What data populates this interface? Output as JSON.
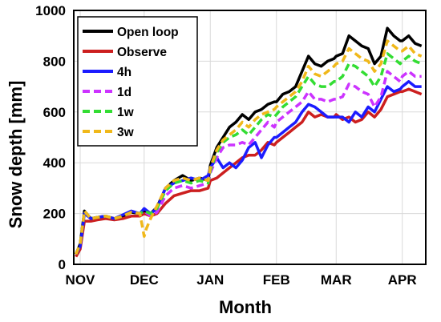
{
  "chart_data": {
    "type": "line",
    "title": "",
    "xlabel": "Month",
    "ylabel": "Snow depth [mm]",
    "ylim": [
      0,
      1000
    ],
    "yticks": [
      0,
      200,
      400,
      600,
      800,
      1000
    ],
    "x_range_days": [
      -3,
      162
    ],
    "xticks": [
      {
        "label": "NOV",
        "day": 0
      },
      {
        "label": "DEC",
        "day": 30
      },
      {
        "label": "JAN",
        "day": 61
      },
      {
        "label": "FEB",
        "day": 92
      },
      {
        "label": "MAR",
        "day": 120
      },
      {
        "label": "APR",
        "day": 151
      }
    ],
    "grid": true,
    "legend_position": "top-left",
    "series": [
      {
        "name": "Open loop",
        "color": "#000000",
        "dash": "solid",
        "x": [
          -2,
          0,
          2,
          5,
          8,
          12,
          16,
          20,
          24,
          28,
          30,
          33,
          36,
          40,
          44,
          48,
          52,
          56,
          60,
          61,
          64,
          67,
          70,
          73,
          76,
          79,
          82,
          85,
          88,
          91,
          92,
          95,
          98,
          101,
          104,
          107,
          110,
          113,
          116,
          119,
          120,
          123,
          126,
          129,
          132,
          135,
          138,
          141,
          144,
          147,
          150,
          151,
          154,
          157,
          160
        ],
        "y": [
          40,
          80,
          210,
          180,
          185,
          190,
          180,
          190,
          205,
          200,
          210,
          200,
          225,
          300,
          330,
          350,
          330,
          340,
          330,
          390,
          460,
          500,
          540,
          560,
          590,
          570,
          600,
          610,
          630,
          640,
          640,
          670,
          680,
          700,
          760,
          820,
          790,
          780,
          800,
          810,
          820,
          830,
          900,
          880,
          860,
          850,
          790,
          820,
          930,
          900,
          880,
          880,
          900,
          870,
          860
        ]
      },
      {
        "name": "Observe",
        "color": "#cc1f1f",
        "dash": "solid",
        "x": [
          -2,
          0,
          2,
          5,
          8,
          12,
          16,
          20,
          24,
          28,
          30,
          33,
          36,
          40,
          44,
          48,
          52,
          56,
          60,
          61,
          64,
          67,
          70,
          73,
          76,
          79,
          82,
          85,
          88,
          91,
          92,
          95,
          98,
          101,
          104,
          107,
          110,
          113,
          116,
          119,
          120,
          123,
          126,
          129,
          132,
          135,
          138,
          141,
          144,
          147,
          150,
          151,
          154,
          157,
          160
        ],
        "y": [
          30,
          60,
          170,
          170,
          175,
          180,
          175,
          180,
          190,
          190,
          200,
          190,
          200,
          240,
          270,
          280,
          290,
          290,
          300,
          330,
          340,
          360,
          380,
          400,
          420,
          430,
          430,
          450,
          480,
          470,
          480,
          500,
          520,
          540,
          560,
          600,
          580,
          590,
          580,
          580,
          590,
          570,
          580,
          560,
          570,
          600,
          580,
          610,
          660,
          670,
          680,
          680,
          690,
          680,
          670
        ]
      },
      {
        "name": "4h",
        "color": "#1b1bff",
        "dash": "solid",
        "x": [
          -2,
          0,
          2,
          5,
          8,
          12,
          16,
          20,
          24,
          28,
          30,
          33,
          36,
          40,
          44,
          48,
          52,
          56,
          60,
          61,
          64,
          67,
          70,
          73,
          76,
          79,
          82,
          85,
          88,
          91,
          92,
          95,
          98,
          101,
          104,
          107,
          110,
          113,
          116,
          119,
          120,
          123,
          126,
          129,
          132,
          135,
          138,
          141,
          144,
          147,
          150,
          151,
          154,
          157,
          160
        ],
        "y": [
          40,
          70,
          200,
          180,
          185,
          190,
          180,
          195,
          210,
          200,
          220,
          200,
          220,
          300,
          320,
          330,
          340,
          330,
          350,
          380,
          420,
          380,
          400,
          380,
          410,
          460,
          480,
          420,
          470,
          500,
          500,
          520,
          540,
          560,
          600,
          630,
          620,
          600,
          580,
          580,
          580,
          580,
          560,
          600,
          580,
          620,
          600,
          650,
          700,
          680,
          690,
          700,
          720,
          700,
          700
        ]
      },
      {
        "name": "1d",
        "color": "#cc33ff",
        "dash": "dash",
        "x": [
          -2,
          0,
          2,
          5,
          8,
          12,
          16,
          20,
          24,
          28,
          30,
          33,
          36,
          40,
          44,
          48,
          52,
          56,
          60,
          61,
          64,
          67,
          70,
          73,
          76,
          79,
          82,
          85,
          88,
          91,
          92,
          95,
          98,
          101,
          104,
          107,
          110,
          113,
          116,
          119,
          120,
          123,
          126,
          129,
          132,
          135,
          138,
          141,
          144,
          147,
          150,
          151,
          154,
          157,
          160
        ],
        "y": [
          40,
          80,
          210,
          180,
          185,
          190,
          180,
          190,
          205,
          200,
          210,
          190,
          205,
          270,
          300,
          310,
          300,
          310,
          320,
          360,
          420,
          460,
          470,
          470,
          480,
          470,
          500,
          530,
          560,
          540,
          560,
          580,
          600,
          620,
          640,
          680,
          650,
          650,
          640,
          650,
          650,
          660,
          710,
          700,
          680,
          670,
          620,
          660,
          760,
          740,
          720,
          740,
          760,
          740,
          740
        ]
      },
      {
        "name": "1w",
        "color": "#33dd33",
        "dash": "dash",
        "x": [
          -2,
          0,
          2,
          5,
          8,
          12,
          16,
          20,
          24,
          28,
          30,
          33,
          36,
          40,
          44,
          48,
          52,
          56,
          60,
          61,
          64,
          67,
          70,
          73,
          76,
          79,
          82,
          85,
          88,
          91,
          92,
          95,
          98,
          101,
          104,
          107,
          110,
          113,
          116,
          119,
          120,
          123,
          126,
          129,
          132,
          135,
          138,
          141,
          144,
          147,
          150,
          151,
          154,
          157,
          160
        ],
        "y": [
          40,
          80,
          210,
          180,
          185,
          190,
          180,
          190,
          205,
          200,
          210,
          200,
          220,
          290,
          320,
          330,
          320,
          330,
          320,
          370,
          440,
          480,
          500,
          510,
          530,
          510,
          540,
          570,
          590,
          580,
          590,
          620,
          640,
          660,
          700,
          740,
          710,
          700,
          700,
          720,
          720,
          740,
          790,
          780,
          760,
          740,
          700,
          740,
          830,
          810,
          790,
          800,
          820,
          800,
          790
        ]
      },
      {
        "name": "3w",
        "color": "#f0b81a",
        "dash": "dash",
        "x": [
          -2,
          0,
          2,
          5,
          8,
          12,
          16,
          20,
          24,
          28,
          30,
          31,
          33,
          36,
          40,
          44,
          48,
          52,
          56,
          60,
          61,
          64,
          67,
          70,
          73,
          76,
          79,
          82,
          85,
          88,
          91,
          92,
          95,
          98,
          101,
          104,
          107,
          110,
          113,
          116,
          119,
          120,
          123,
          126,
          129,
          132,
          135,
          138,
          141,
          144,
          147,
          150,
          151,
          154,
          157,
          160
        ],
        "y": [
          40,
          80,
          210,
          180,
          185,
          190,
          180,
          190,
          205,
          200,
          110,
          140,
          180,
          230,
          300,
          330,
          340,
          330,
          340,
          330,
          380,
          450,
          490,
          510,
          530,
          560,
          540,
          570,
          590,
          600,
          610,
          620,
          640,
          660,
          680,
          720,
          780,
          750,
          740,
          760,
          780,
          790,
          800,
          850,
          830,
          810,
          800,
          760,
          790,
          880,
          860,
          840,
          840,
          860,
          830,
          820
        ]
      }
    ]
  }
}
